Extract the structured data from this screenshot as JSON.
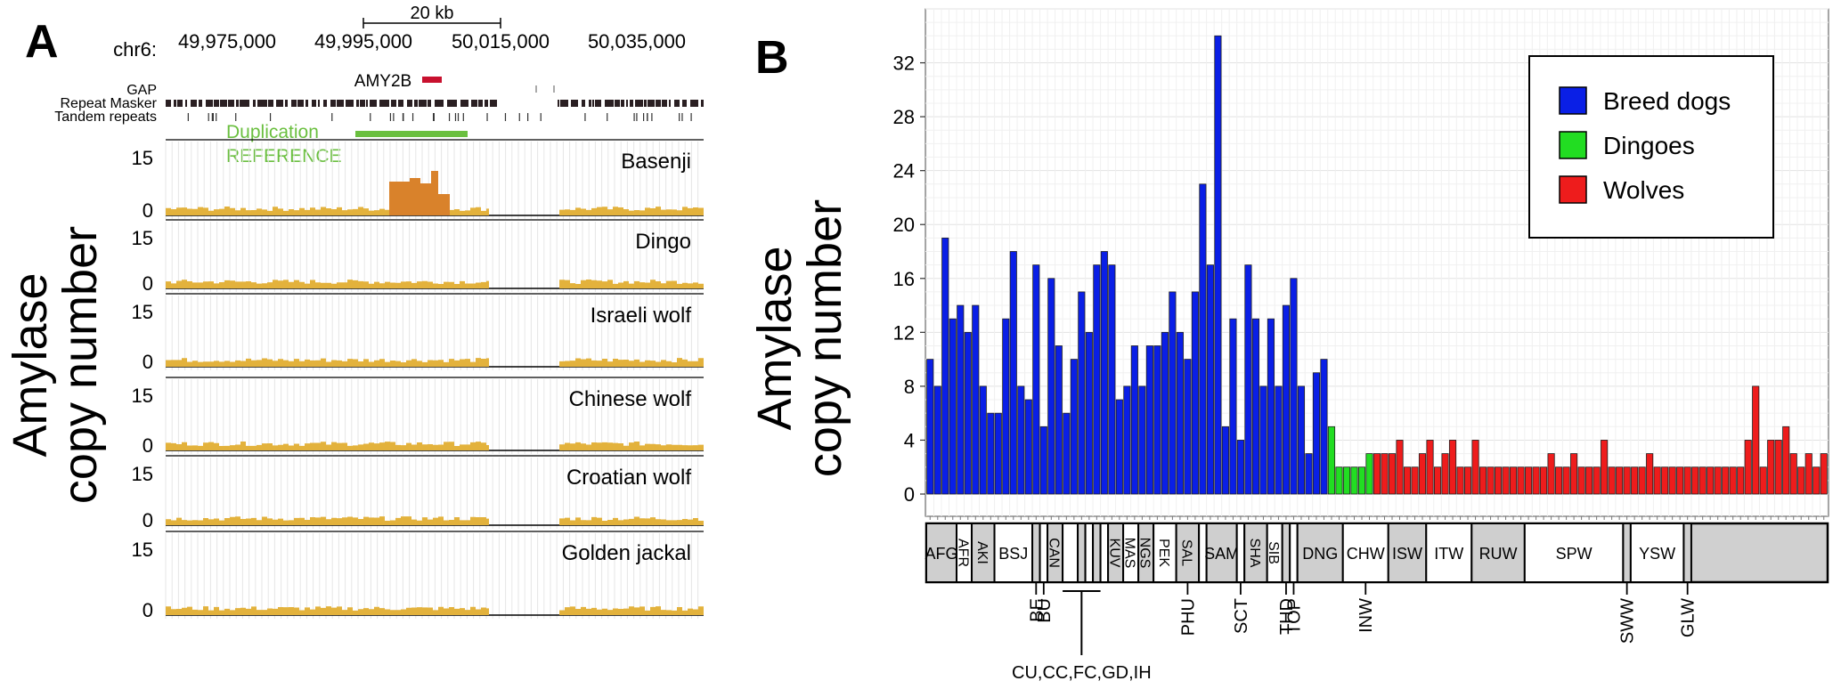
{
  "panel_a": {
    "letter": "A",
    "chrom_label": "chr6:",
    "positions": [
      "49,975,000",
      "49,995,000",
      "50,015,000",
      "50,035,000"
    ],
    "scale_label": "20 kb",
    "gene_label": "AMY2B",
    "track_labels": [
      "GAP",
      "Repeat Masker",
      "Tandem repeats"
    ],
    "duplication_label": "Duplication",
    "reference_label": "REFERENCE",
    "ylabel_line1": "Amylase",
    "ylabel_line2": "copy number",
    "tracks": [
      {
        "name": "Basenji",
        "ymax": "15",
        "ymin": "0",
        "duplicated": true
      },
      {
        "name": "Dingo",
        "ymax": "15",
        "ymin": "0",
        "duplicated": false
      },
      {
        "name": "Israeli wolf",
        "ymax": "15",
        "ymin": "0",
        "duplicated": false
      },
      {
        "name": "Chinese wolf",
        "ymax": "15",
        "ymin": "0",
        "duplicated": false
      },
      {
        "name": "Croatian wolf",
        "ymax": "15",
        "ymin": "0",
        "duplicated": false
      },
      {
        "name": "Golden jackal",
        "ymax": "15",
        "ymin": "0",
        "duplicated": false
      }
    ],
    "colors": {
      "coverage": "#e3b23c",
      "duplication": "#d9822b",
      "gene": "#c8102e",
      "dup_bar": "#6abf3f",
      "dup_text": "#6abf3f"
    }
  },
  "chart_data": {
    "type": "bar",
    "panel_letter": "B",
    "ylabel_line1": "Amylase",
    "ylabel_line2": "copy number",
    "ylim": [
      0,
      36
    ],
    "yticks": [
      0,
      4,
      8,
      12,
      16,
      20,
      24,
      28,
      32
    ],
    "grid": true,
    "legend_position": "top-right",
    "legend": [
      {
        "name": "Breed dogs",
        "color": "#0a1fe6"
      },
      {
        "name": "Dingoes",
        "color": "#22dd22"
      },
      {
        "name": "Wolves",
        "color": "#ee1c1c"
      }
    ],
    "series": [
      {
        "name": "Breed dogs",
        "color": "#0a1fe6",
        "values": [
          10,
          8,
          19,
          13,
          14,
          12,
          14,
          8,
          6,
          6,
          13,
          18,
          8,
          7,
          17,
          5,
          16,
          11,
          6,
          10,
          15,
          12,
          17,
          18,
          17,
          7,
          8,
          11,
          8,
          11,
          11,
          12,
          15,
          12,
          10,
          15,
          23,
          17,
          34,
          5,
          13,
          4,
          17,
          13,
          8,
          13,
          8,
          14,
          16,
          8,
          3,
          9,
          10
        ]
      },
      {
        "name": "Dingoes",
        "color": "#22dd22",
        "values": [
          5,
          2,
          2,
          2,
          2,
          3
        ]
      },
      {
        "name": "Wolves",
        "color": "#ee1c1c",
        "values": [
          3,
          3,
          3,
          4,
          2,
          2,
          3,
          4,
          2,
          3,
          4,
          2,
          2,
          4,
          2,
          2,
          2,
          2,
          2,
          2,
          2,
          2,
          2,
          3,
          2,
          2,
          3,
          2,
          2,
          2,
          4,
          2,
          2,
          2,
          2,
          2,
          3,
          2,
          2,
          2,
          2,
          2,
          2,
          2,
          2,
          2,
          2,
          2,
          2,
          4,
          8,
          2,
          4,
          4,
          5,
          3,
          2,
          3,
          2,
          3
        ]
      }
    ],
    "groups": [
      {
        "label": "AFG",
        "n": 4,
        "rotate": false
      },
      {
        "label": "AFR",
        "n": 2,
        "rotate": false
      },
      {
        "label": "AKI",
        "n": 3,
        "rotate": false
      },
      {
        "label": "BSJ",
        "n": 5,
        "rotate": false
      },
      {
        "label": "",
        "n": 1,
        "rotate": false
      },
      {
        "label": "",
        "n": 1,
        "rotate": false
      },
      {
        "label": "CAN",
        "n": 2,
        "rotate": false
      },
      {
        "label": "",
        "n": 2,
        "rotate": false
      },
      {
        "label": "",
        "n": 1,
        "rotate": false
      },
      {
        "label": "",
        "n": 1,
        "rotate": false
      },
      {
        "label": "",
        "n": 1,
        "rotate": false
      },
      {
        "label": "",
        "n": 1,
        "rotate": false
      },
      {
        "label": "KUV",
        "n": 2,
        "rotate": false
      },
      {
        "label": "MAS",
        "n": 2,
        "rotate": false
      },
      {
        "label": "NGS",
        "n": 2,
        "rotate": false
      },
      {
        "label": "PEK",
        "n": 3,
        "rotate": false
      },
      {
        "label": "SAL",
        "n": 3,
        "rotate": false
      },
      {
        "label": "",
        "n": 1,
        "rotate": false
      },
      {
        "label": "SAM",
        "n": 4,
        "rotate": false
      },
      {
        "label": "",
        "n": 1,
        "rotate": false
      },
      {
        "label": "SHA",
        "n": 3,
        "rotate": false
      },
      {
        "label": "SIB",
        "n": 2,
        "rotate": false
      },
      {
        "label": "",
        "n": 1,
        "rotate": false
      },
      {
        "label": "",
        "n": 1,
        "rotate": false
      },
      {
        "label": "DNG",
        "n": 6,
        "rotate": false
      },
      {
        "label": "CHW",
        "n": 6,
        "rotate": false
      },
      {
        "label": "ISW",
        "n": 5,
        "rotate": false
      },
      {
        "label": "ITW",
        "n": 6,
        "rotate": false
      },
      {
        "label": "RUW",
        "n": 7,
        "rotate": false
      },
      {
        "label": "SPW",
        "n": 13,
        "rotate": false
      },
      {
        "label": "",
        "n": 1,
        "rotate": false
      },
      {
        "label": "YSW",
        "n": 7,
        "rotate": false
      },
      {
        "label": "",
        "n": 1,
        "rotate": false
      }
    ],
    "callouts": [
      {
        "label": "BE",
        "after_group": 4
      },
      {
        "label": "BU",
        "after_group": 5
      },
      {
        "label": "CU,CC,FC,GD,IH",
        "after_group": 8
      },
      {
        "label": "PHU",
        "after_group": 16
      },
      {
        "label": "SCT",
        "after_group": 19
      },
      {
        "label": "THD",
        "after_group": 22
      },
      {
        "label": "TOP",
        "after_group": 23
      },
      {
        "label": "INW",
        "after_group": 25
      },
      {
        "label": "SWW",
        "after_group": 30
      },
      {
        "label": "GLW",
        "after_group": 32
      }
    ]
  }
}
